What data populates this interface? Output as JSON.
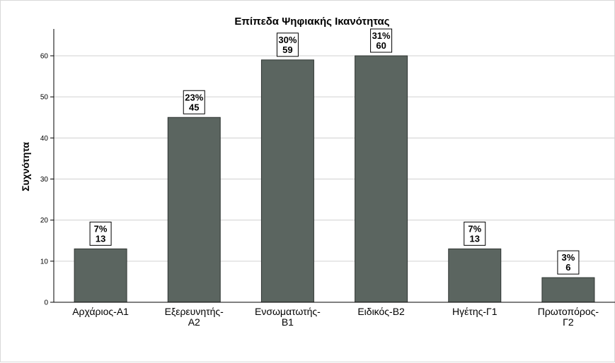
{
  "chart_data": {
    "type": "bar",
    "title": "Επίπεδα Ψηφιακής Ικανότητας",
    "ylabel": "Συχνότητα",
    "xlabel": "",
    "ylim": [
      0,
      66
    ],
    "yticks": [
      0,
      10,
      20,
      30,
      40,
      50,
      60
    ],
    "grid": true,
    "categories": [
      [
        "Αρχάριος-Α1"
      ],
      [
        "Εξερευνητής-",
        "Α2"
      ],
      [
        "Ενσωματωτής-",
        "Β1"
      ],
      [
        "Ειδικός-Β2"
      ],
      [
        "Ηγέτης-Γ1"
      ],
      [
        "Πρωτοπόρος-",
        "Γ2"
      ]
    ],
    "values": [
      13,
      45,
      59,
      60,
      13,
      6
    ],
    "percent_labels": [
      "7%",
      "23%",
      "30%",
      "31%",
      "7%",
      "3%"
    ],
    "bar_color": "#5b6560",
    "grid_color": "#d0d0d0"
  }
}
